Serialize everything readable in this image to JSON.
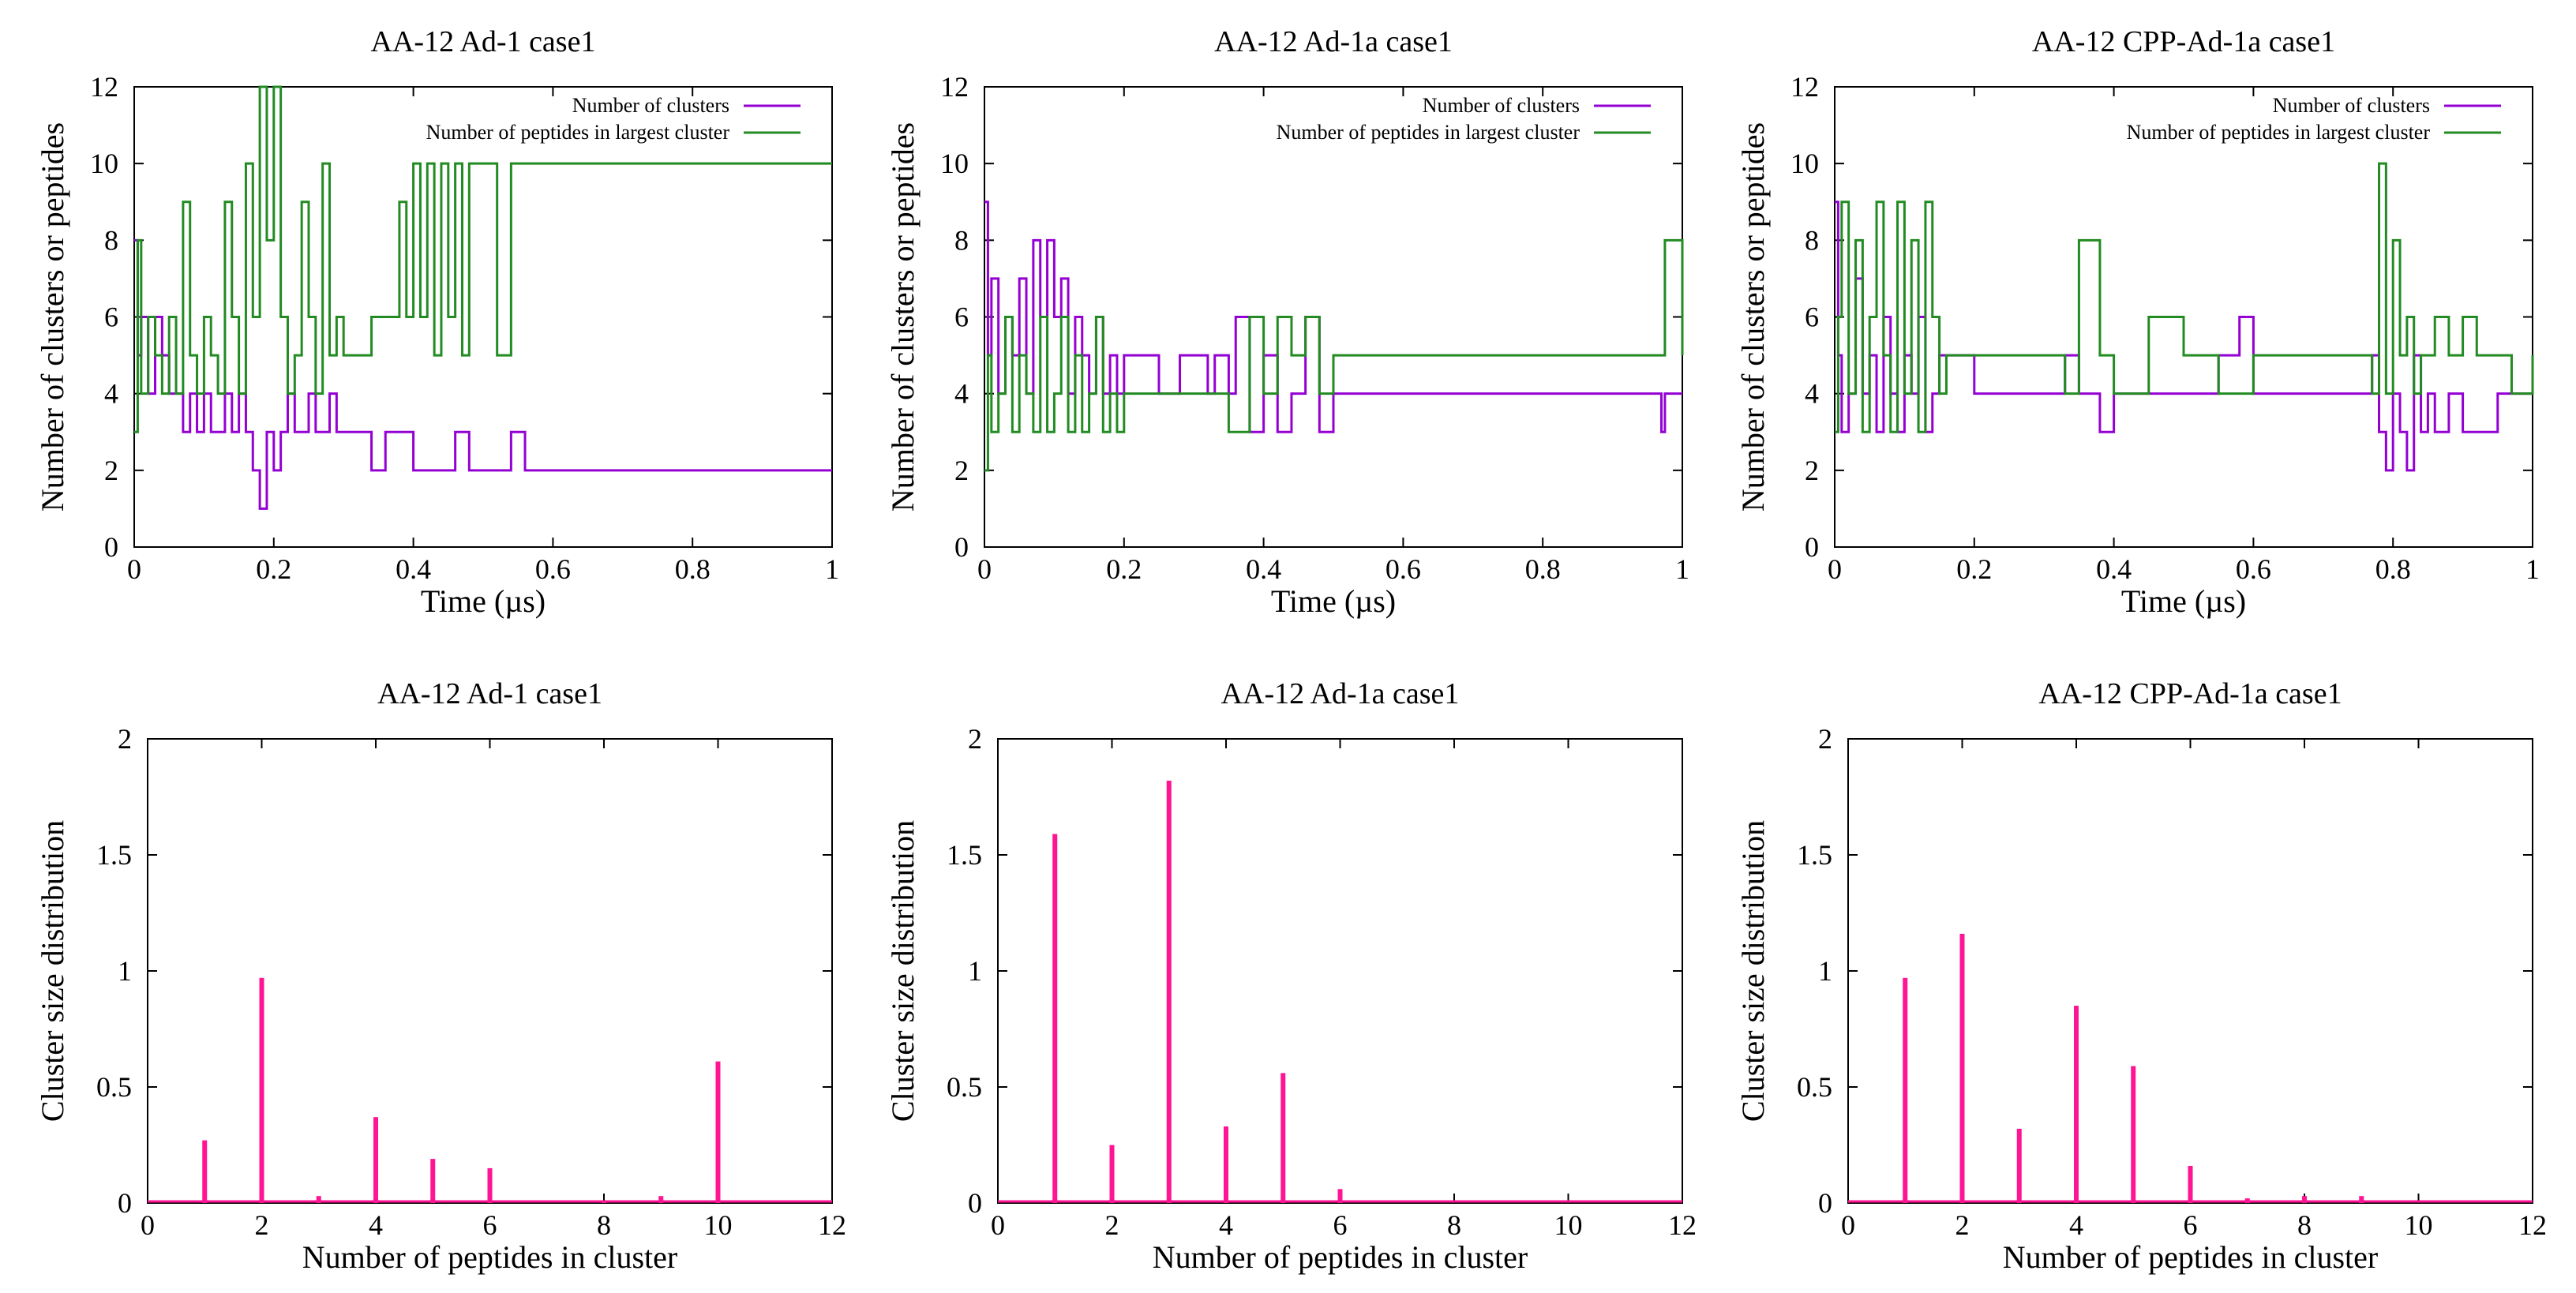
{
  "chart_data": [
    {
      "type": "line",
      "title": "AA-12 Ad-1 case1",
      "xlabel": "Time (µs)",
      "ylabel": "Number of clusters or peptides",
      "xlim": [
        0,
        1
      ],
      "ylim": [
        0,
        12
      ],
      "xticks": [
        "0",
        "0.2",
        "0.4",
        "0.6",
        "0.8",
        "1"
      ],
      "yticks": [
        "0",
        "2",
        "4",
        "6",
        "8",
        "10",
        "12"
      ],
      "legend_position": "top-right",
      "series": [
        {
          "name": "Number of clusters",
          "color": "#9400d3",
          "x": [
            0,
            0.005,
            0.01,
            0.02,
            0.03,
            0.04,
            0.05,
            0.06,
            0.07,
            0.08,
            0.09,
            0.1,
            0.11,
            0.12,
            0.13,
            0.14,
            0.15,
            0.16,
            0.17,
            0.18,
            0.19,
            0.2,
            0.21,
            0.22,
            0.23,
            0.24,
            0.25,
            0.26,
            0.27,
            0.28,
            0.29,
            0.3,
            0.32,
            0.34,
            0.36,
            0.38,
            0.4,
            0.42,
            0.44,
            0.46,
            0.48,
            0.5,
            0.52,
            0.54,
            0.56,
            1.0
          ],
          "values": [
            8,
            5,
            6,
            4,
            6,
            5,
            4,
            4,
            3,
            4,
            3,
            4,
            3,
            3,
            4,
            3,
            4,
            3,
            2,
            1,
            3,
            2,
            3,
            4,
            3,
            3,
            4,
            3,
            3,
            4,
            3,
            3,
            3,
            2,
            3,
            3,
            2,
            2,
            2,
            3,
            2,
            2,
            2,
            3,
            2,
            2
          ]
        },
        {
          "name": "Number of peptides in largest cluster",
          "color": "#228b22",
          "x": [
            0,
            0.005,
            0.01,
            0.02,
            0.03,
            0.04,
            0.05,
            0.06,
            0.07,
            0.08,
            0.09,
            0.1,
            0.11,
            0.12,
            0.13,
            0.14,
            0.15,
            0.16,
            0.17,
            0.18,
            0.19,
            0.2,
            0.21,
            0.22,
            0.23,
            0.24,
            0.25,
            0.26,
            0.27,
            0.28,
            0.29,
            0.3,
            0.32,
            0.34,
            0.36,
            0.38,
            0.39,
            0.4,
            0.41,
            0.42,
            0.43,
            0.44,
            0.45,
            0.46,
            0.47,
            0.48,
            0.5,
            0.52,
            0.54,
            0.55,
            1.0
          ],
          "values": [
            3,
            8,
            4,
            6,
            5,
            4,
            6,
            4,
            9,
            5,
            4,
            6,
            5,
            4,
            9,
            6,
            4,
            10,
            6,
            12,
            8,
            12,
            6,
            4,
            5,
            9,
            6,
            4,
            10,
            5,
            6,
            5,
            5,
            6,
            6,
            9,
            6,
            10,
            6,
            10,
            5,
            10,
            6,
            10,
            5,
            10,
            10,
            5,
            10,
            10,
            10
          ]
        }
      ]
    },
    {
      "type": "line",
      "title": "AA-12 Ad-1a case1",
      "xlabel": "Time (µs)",
      "ylabel": "Number of clusters or peptides",
      "xlim": [
        0,
        1
      ],
      "ylim": [
        0,
        12
      ],
      "xticks": [
        "0",
        "0.2",
        "0.4",
        "0.6",
        "0.8",
        "1"
      ],
      "yticks": [
        "0",
        "2",
        "4",
        "6",
        "8",
        "10",
        "12"
      ],
      "legend_position": "top-right",
      "series": [
        {
          "name": "Number of clusters",
          "color": "#9400d3",
          "x": [
            0,
            0.005,
            0.01,
            0.02,
            0.03,
            0.04,
            0.05,
            0.06,
            0.07,
            0.08,
            0.09,
            0.1,
            0.11,
            0.12,
            0.13,
            0.14,
            0.15,
            0.16,
            0.17,
            0.18,
            0.19,
            0.2,
            0.22,
            0.25,
            0.28,
            0.3,
            0.32,
            0.33,
            0.35,
            0.36,
            0.38,
            0.4,
            0.42,
            0.44,
            0.46,
            0.48,
            0.5,
            0.52,
            0.55,
            0.6,
            0.97,
            0.975,
            1.0
          ],
          "values": [
            9,
            5,
            7,
            4,
            6,
            5,
            7,
            4,
            8,
            6,
            8,
            6,
            7,
            4,
            6,
            5,
            4,
            6,
            4,
            5,
            4,
            5,
            5,
            4,
            5,
            5,
            4,
            5,
            4,
            6,
            3,
            5,
            3,
            4,
            6,
            3,
            4,
            4,
            4,
            4,
            3,
            4,
            4
          ]
        },
        {
          "name": "Number of peptides in largest cluster",
          "color": "#228b22",
          "x": [
            0,
            0.005,
            0.01,
            0.02,
            0.03,
            0.04,
            0.05,
            0.06,
            0.07,
            0.08,
            0.09,
            0.1,
            0.11,
            0.12,
            0.13,
            0.14,
            0.15,
            0.16,
            0.17,
            0.18,
            0.19,
            0.2,
            0.22,
            0.25,
            0.3,
            0.33,
            0.35,
            0.38,
            0.4,
            0.42,
            0.44,
            0.46,
            0.48,
            0.5,
            0.52,
            0.97,
            0.975,
            1.0
          ],
          "values": [
            2,
            5,
            3,
            4,
            6,
            3,
            5,
            4,
            3,
            6,
            3,
            4,
            6,
            3,
            5,
            3,
            4,
            6,
            3,
            4,
            3,
            4,
            4,
            4,
            4,
            4,
            3,
            6,
            4,
            6,
            5,
            6,
            4,
            5,
            5,
            5,
            8,
            5
          ]
        }
      ]
    },
    {
      "type": "line",
      "title": "AA-12 CPP-Ad-1a case1",
      "xlabel": "Time (µs)",
      "ylabel": "Number of clusters or peptides",
      "xlim": [
        0,
        1
      ],
      "ylim": [
        0,
        12
      ],
      "xticks": [
        "0",
        "0.2",
        "0.4",
        "0.6",
        "0.8",
        "1"
      ],
      "yticks": [
        "0",
        "2",
        "4",
        "6",
        "8",
        "10",
        "12"
      ],
      "legend_position": "top-right",
      "series": [
        {
          "name": "Number of clusters",
          "color": "#9400d3",
          "x": [
            0,
            0.005,
            0.01,
            0.02,
            0.03,
            0.04,
            0.05,
            0.06,
            0.07,
            0.08,
            0.09,
            0.1,
            0.11,
            0.12,
            0.13,
            0.14,
            0.15,
            0.2,
            0.3,
            0.33,
            0.35,
            0.38,
            0.4,
            0.45,
            0.5,
            0.55,
            0.58,
            0.6,
            0.65,
            0.7,
            0.75,
            0.77,
            0.78,
            0.79,
            0.8,
            0.81,
            0.82,
            0.83,
            0.84,
            0.85,
            0.86,
            0.88,
            0.9,
            0.92,
            0.95,
            1.0
          ],
          "values": [
            9,
            5,
            3,
            4,
            7,
            4,
            5,
            3,
            6,
            4,
            3,
            5,
            4,
            6,
            3,
            4,
            5,
            4,
            4,
            5,
            4,
            3,
            4,
            4,
            4,
            5,
            6,
            4,
            4,
            4,
            4,
            5,
            3,
            2,
            4,
            3,
            2,
            5,
            3,
            4,
            3,
            4,
            3,
            3,
            4,
            4
          ]
        },
        {
          "name": "Number of peptides in largest cluster",
          "color": "#228b22",
          "x": [
            0,
            0.005,
            0.01,
            0.02,
            0.03,
            0.04,
            0.05,
            0.06,
            0.07,
            0.08,
            0.09,
            0.1,
            0.11,
            0.12,
            0.13,
            0.14,
            0.15,
            0.16,
            0.18,
            0.2,
            0.25,
            0.3,
            0.33,
            0.35,
            0.38,
            0.4,
            0.45,
            0.5,
            0.55,
            0.6,
            0.65,
            0.7,
            0.75,
            0.77,
            0.78,
            0.79,
            0.8,
            0.81,
            0.82,
            0.83,
            0.84,
            0.86,
            0.88,
            0.9,
            0.92,
            0.95,
            0.97,
            1.0
          ],
          "values": [
            3,
            6,
            9,
            4,
            8,
            3,
            6,
            9,
            5,
            3,
            9,
            4,
            8,
            3,
            9,
            6,
            4,
            5,
            5,
            5,
            5,
            5,
            4,
            8,
            5,
            4,
            6,
            5,
            4,
            5,
            5,
            5,
            5,
            4,
            10,
            4,
            8,
            5,
            6,
            4,
            5,
            6,
            5,
            6,
            5,
            5,
            4,
            5
          ]
        }
      ]
    },
    {
      "type": "bar",
      "title": "AA-12 Ad-1 case1",
      "xlabel": "Number of peptides in cluster",
      "ylabel": "Cluster size distribution",
      "xlim": [
        0,
        12
      ],
      "ylim": [
        0,
        2
      ],
      "xticks": [
        "0",
        "2",
        "4",
        "6",
        "8",
        "10",
        "12"
      ],
      "yticks": [
        "0",
        "0.5",
        "1",
        "1.5",
        "2"
      ],
      "color": "#ff1493",
      "x": [
        1,
        2,
        3,
        4,
        5,
        6,
        8,
        9,
        10
      ],
      "values": [
        0.27,
        0.97,
        0.03,
        0.37,
        0.19,
        0.15,
        0.01,
        0.03,
        0.61
      ]
    },
    {
      "type": "bar",
      "title": "AA-12 Ad-1a case1",
      "xlabel": "Number of peptides in cluster",
      "ylabel": "Cluster size distribution",
      "xlim": [
        0,
        12
      ],
      "ylim": [
        0,
        2
      ],
      "xticks": [
        "0",
        "2",
        "4",
        "6",
        "8",
        "10",
        "12"
      ],
      "yticks": [
        "0",
        "0.5",
        "1",
        "1.5",
        "2"
      ],
      "color": "#ff1493",
      "x": [
        1,
        2,
        3,
        4,
        5,
        6
      ],
      "values": [
        1.59,
        0.25,
        1.82,
        0.33,
        0.56,
        0.06
      ]
    },
    {
      "type": "bar",
      "title": "AA-12 CPP-Ad-1a case1",
      "xlabel": "Number of peptides in cluster",
      "ylabel": "Cluster size distribution",
      "xlim": [
        0,
        12
      ],
      "ylim": [
        0,
        2
      ],
      "xticks": [
        "0",
        "2",
        "4",
        "6",
        "8",
        "10",
        "12"
      ],
      "yticks": [
        "0",
        "0.5",
        "1",
        "1.5",
        "2"
      ],
      "color": "#ff1493",
      "x": [
        1,
        2,
        3,
        4,
        5,
        6,
        7,
        8,
        9
      ],
      "values": [
        0.97,
        1.16,
        0.32,
        0.85,
        0.59,
        0.16,
        0.02,
        0.03,
        0.03
      ]
    }
  ]
}
